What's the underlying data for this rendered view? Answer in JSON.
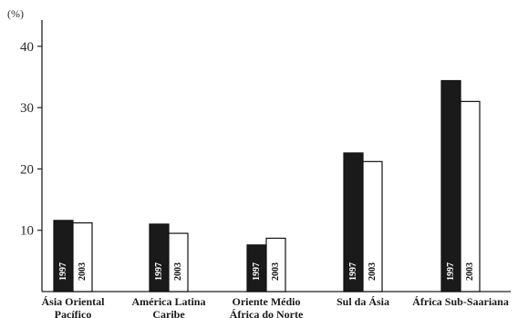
{
  "chart_data": {
    "type": "bar",
    "unit_label": "(%)",
    "categories": [
      [
        "Ásia Oriental",
        "Pacífico"
      ],
      [
        "América Latina",
        "Caribe"
      ],
      [
        "Oriente Médio",
        "África do Norte"
      ],
      [
        "Sul da Ásia"
      ],
      [
        "África Sub-Saariana"
      ]
    ],
    "series": [
      {
        "name": "1997",
        "color": "#1a1a1a",
        "values": [
          11.6,
          11.0,
          7.6,
          22.6,
          34.4
        ]
      },
      {
        "name": "2003",
        "color": "#ffffff",
        "values": [
          11.2,
          9.5,
          8.7,
          21.2,
          31.0
        ]
      }
    ],
    "ylim": [
      0,
      45
    ],
    "yticks": [
      10,
      20,
      30,
      40
    ],
    "grid": false
  }
}
